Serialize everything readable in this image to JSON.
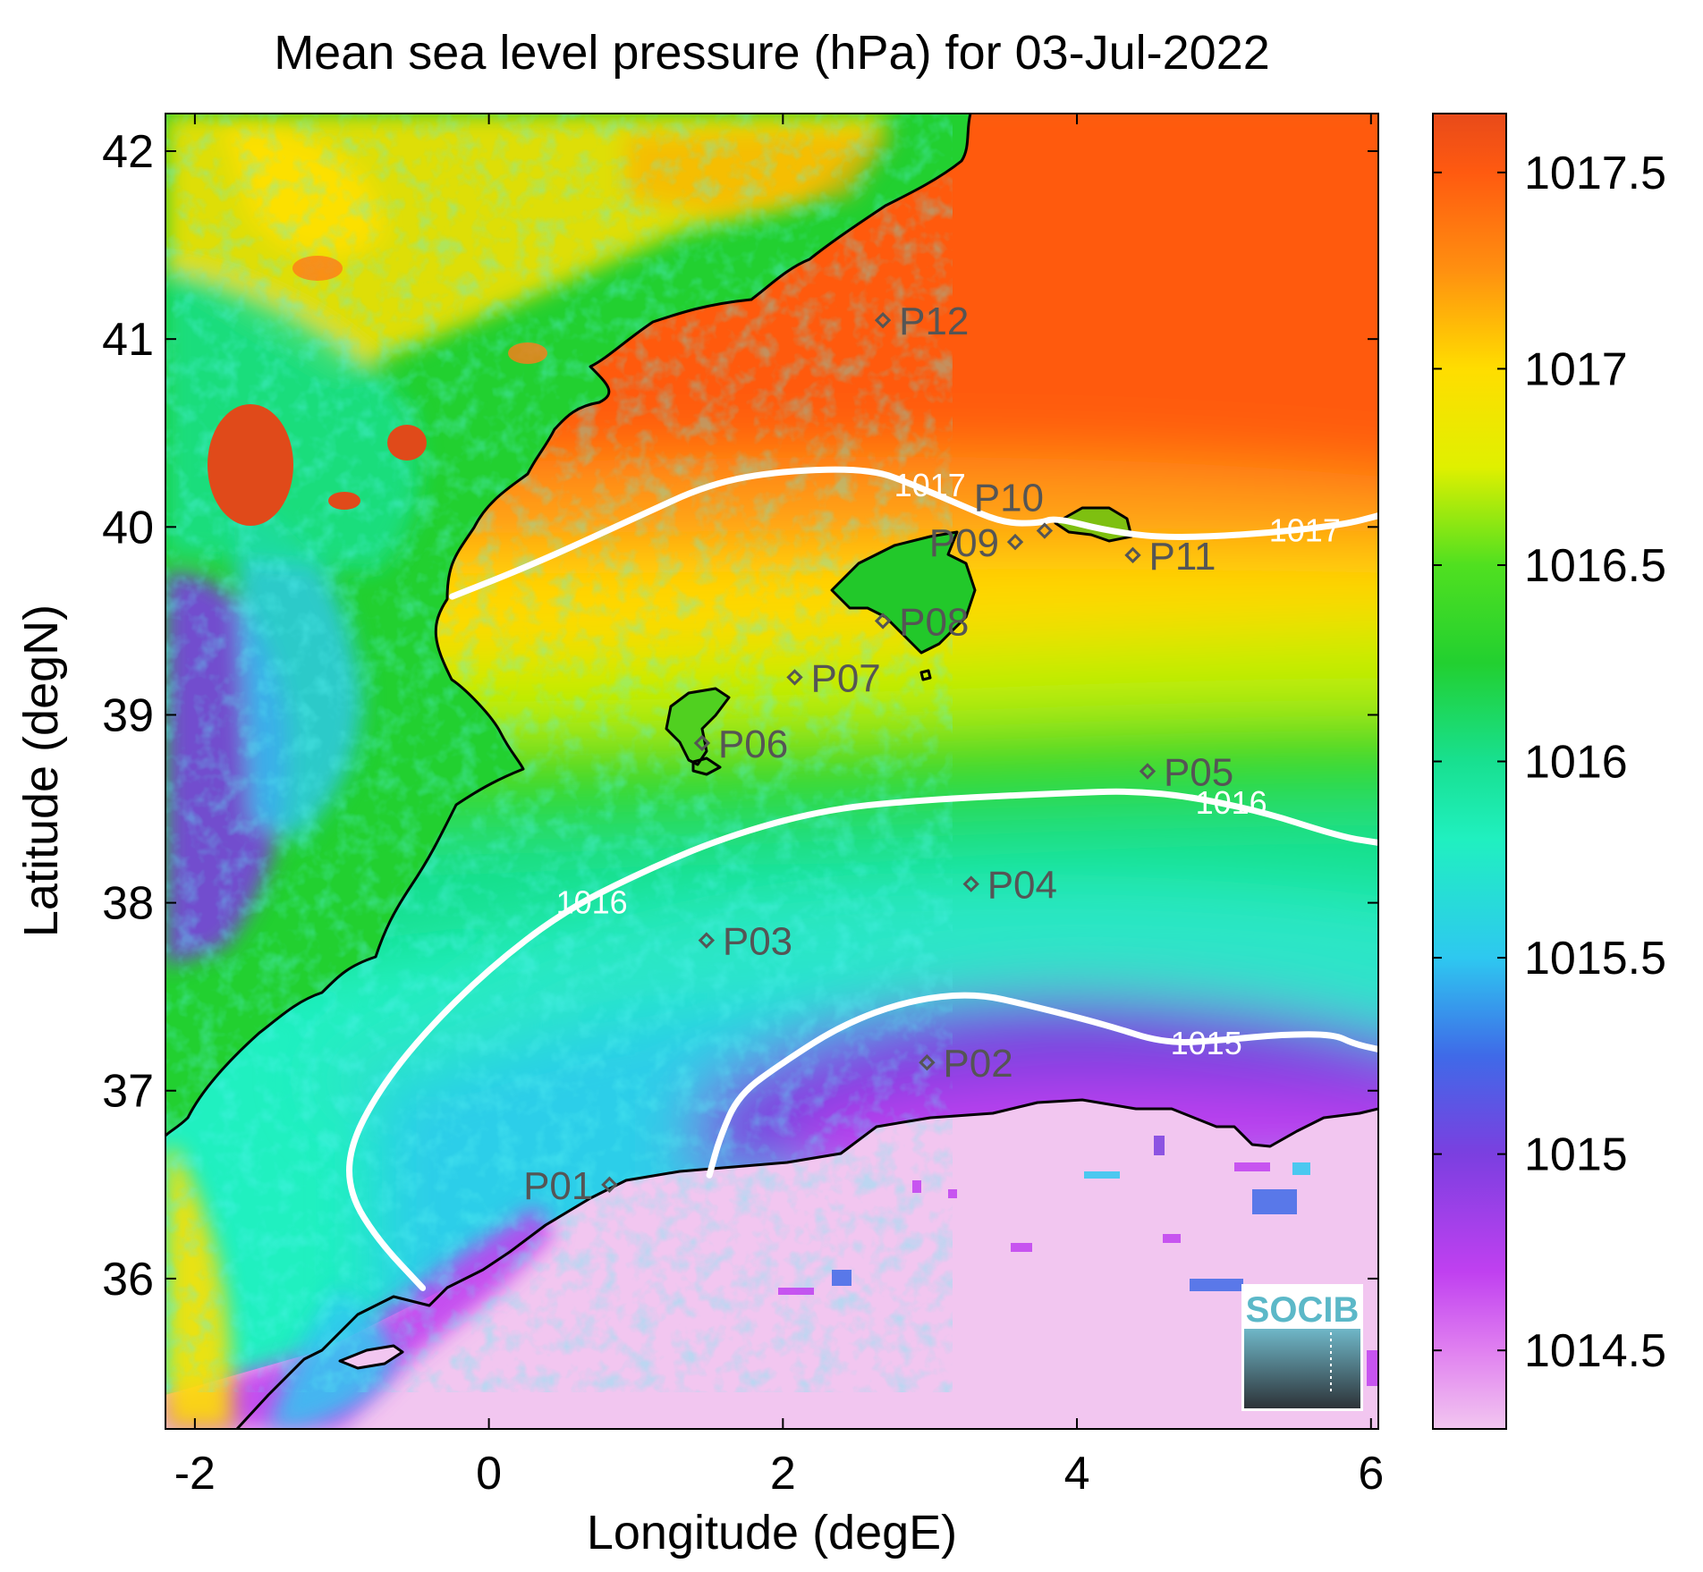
{
  "title": "Mean sea level pressure (hPa) for 03-Jul-2022",
  "xlabel": "Longitude (degE)",
  "ylabel": "Latitude (degN)",
  "logo": "SOCIB",
  "colors": {
    "land_highlands": "#f04a1a",
    "sea_north": "#ff6a12",
    "contour": "#ffffff",
    "coast": "#000000",
    "marker": "#555555"
  },
  "colorbar": {
    "min": 1014.3,
    "max": 1017.65,
    "stops": [
      {
        "v": 1014.3,
        "c": "#f2c6f0"
      },
      {
        "v": 1014.5,
        "c": "#e080f0"
      },
      {
        "v": 1014.7,
        "c": "#c040f0"
      },
      {
        "v": 1015.0,
        "c": "#7b3fe0"
      },
      {
        "v": 1015.25,
        "c": "#3f6ae8"
      },
      {
        "v": 1015.5,
        "c": "#2ec8f0"
      },
      {
        "v": 1015.8,
        "c": "#20f0c0"
      },
      {
        "v": 1016.0,
        "c": "#18e090"
      },
      {
        "v": 1016.25,
        "c": "#22d030"
      },
      {
        "v": 1016.5,
        "c": "#50e020"
      },
      {
        "v": 1016.75,
        "c": "#e0f000"
      },
      {
        "v": 1017.0,
        "c": "#ffdd00"
      },
      {
        "v": 1017.25,
        "c": "#ff9010"
      },
      {
        "v": 1017.5,
        "c": "#ff5a10"
      },
      {
        "v": 1017.65,
        "c": "#e84a1a"
      }
    ],
    "ticks": [
      "1014.5",
      "1015",
      "1015.5",
      "1016",
      "1016.5",
      "1017",
      "1017.5"
    ]
  },
  "chart_data": {
    "type": "map",
    "xlim": [
      -2.2,
      6.05
    ],
    "ylim": [
      35.2,
      42.2
    ],
    "xticks": [
      "-2",
      "0",
      "2",
      "4",
      "6"
    ],
    "yticks": [
      "36",
      "37",
      "38",
      "39",
      "40",
      "41",
      "42"
    ],
    "grid": false,
    "points": [
      {
        "label": "P01",
        "lon": 0.82,
        "lat": 36.5
      },
      {
        "label": "P02",
        "lon": 2.98,
        "lat": 37.15
      },
      {
        "label": "P03",
        "lon": 1.48,
        "lat": 37.8
      },
      {
        "label": "P04",
        "lon": 3.28,
        "lat": 38.1
      },
      {
        "label": "P05",
        "lon": 4.48,
        "lat": 38.7
      },
      {
        "label": "P06",
        "lon": 1.45,
        "lat": 38.85
      },
      {
        "label": "P07",
        "lon": 2.08,
        "lat": 39.2
      },
      {
        "label": "P08",
        "lon": 2.68,
        "lat": 39.5
      },
      {
        "label": "P09",
        "lon": 3.58,
        "lat": 39.92
      },
      {
        "label": "P10",
        "lon": 3.78,
        "lat": 39.98
      },
      {
        "label": "P11",
        "lon": 4.38,
        "lat": 39.85
      },
      {
        "label": "P12",
        "lon": 2.68,
        "lat": 41.1
      }
    ],
    "contours": [
      {
        "label": "1017",
        "points": [
          [
            -0.25,
            39.63
          ],
          [
            0.3,
            39.8
          ],
          [
            1.0,
            40.05
          ],
          [
            1.5,
            40.23
          ],
          [
            2.0,
            40.3
          ],
          [
            2.6,
            40.31
          ],
          [
            2.9,
            40.22
          ],
          [
            3.2,
            40.12
          ],
          [
            3.5,
            40.02
          ],
          [
            3.75,
            40.02
          ],
          [
            3.85,
            40.05
          ],
          [
            4.2,
            39.98
          ],
          [
            4.6,
            39.94
          ],
          [
            5.2,
            39.96
          ],
          [
            5.8,
            40.01
          ],
          [
            6.05,
            40.06
          ]
        ],
        "label_positions": [
          [
            3.0,
            40.22
          ],
          [
            5.55,
            39.98
          ]
        ]
      },
      {
        "label": "1016",
        "points": [
          [
            -0.45,
            35.95
          ],
          [
            -0.75,
            36.2
          ],
          [
            -0.95,
            36.45
          ],
          [
            -0.95,
            36.7
          ],
          [
            -0.75,
            37.0
          ],
          [
            -0.45,
            37.3
          ],
          [
            0.0,
            37.65
          ],
          [
            0.5,
            37.95
          ],
          [
            1.0,
            38.15
          ],
          [
            1.6,
            38.35
          ],
          [
            2.3,
            38.5
          ],
          [
            3.0,
            38.55
          ],
          [
            3.8,
            38.58
          ],
          [
            4.5,
            38.6
          ],
          [
            5.2,
            38.5
          ],
          [
            5.8,
            38.35
          ],
          [
            6.05,
            38.32
          ]
        ],
        "label_positions": [
          [
            0.7,
            38.0
          ],
          [
            5.05,
            38.53
          ]
        ]
      },
      {
        "label": "1015",
        "points": [
          [
            1.5,
            36.55
          ],
          [
            1.57,
            36.75
          ],
          [
            1.7,
            36.98
          ],
          [
            2.0,
            37.15
          ],
          [
            2.4,
            37.35
          ],
          [
            2.85,
            37.48
          ],
          [
            3.3,
            37.52
          ],
          [
            3.7,
            37.45
          ],
          [
            4.2,
            37.35
          ],
          [
            4.6,
            37.25
          ],
          [
            5.0,
            37.27
          ],
          [
            5.4,
            37.3
          ],
          [
            5.75,
            37.3
          ],
          [
            5.88,
            37.25
          ],
          [
            6.05,
            37.22
          ]
        ],
        "label_positions": [
          [
            4.88,
            37.25
          ]
        ]
      }
    ]
  }
}
